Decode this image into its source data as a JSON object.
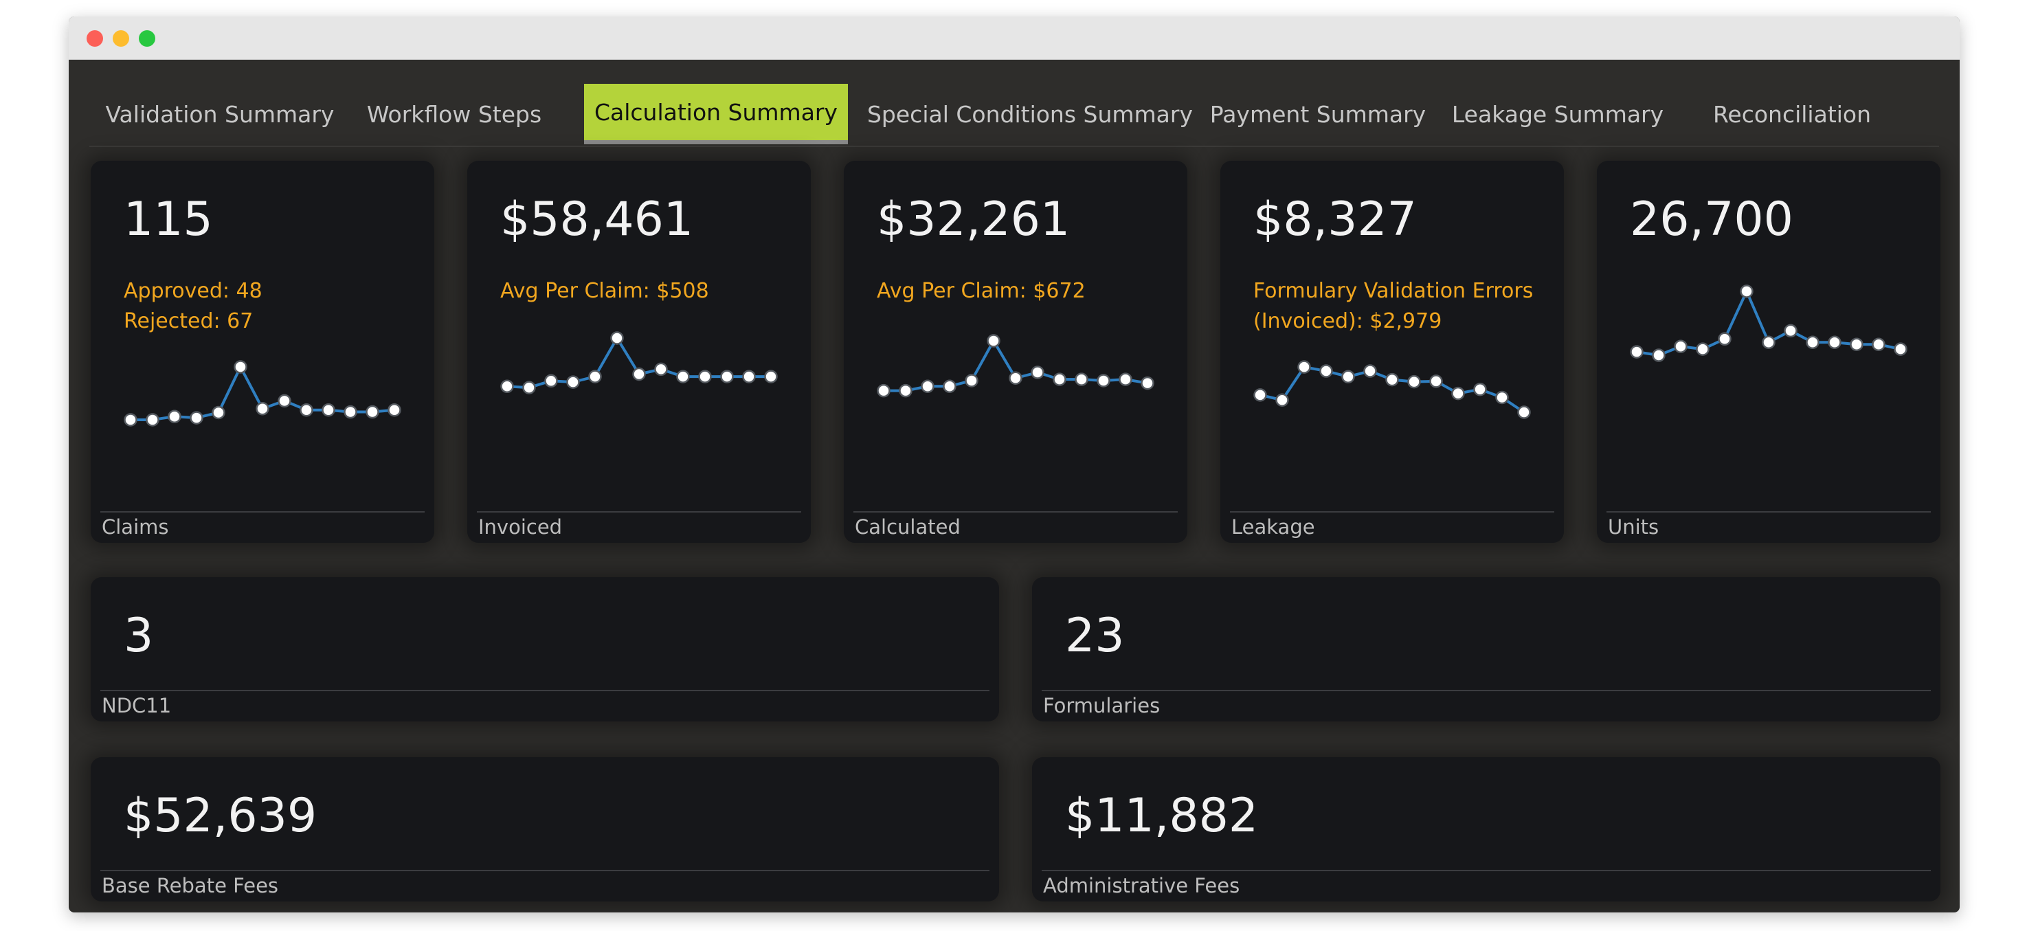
{
  "tabs": [
    {
      "label": "Validation Summary",
      "active": false
    },
    {
      "label": "Workflow Steps",
      "active": false
    },
    {
      "label": "Calculation Summary",
      "active": true
    },
    {
      "label": "Special Conditions Summary",
      "active": false
    },
    {
      "label": "Payment Summary",
      "active": false
    },
    {
      "label": "Leakage Summary",
      "active": false
    },
    {
      "label": "Reconciliation",
      "active": false
    }
  ],
  "colors": {
    "accent": "#b4d33a",
    "highlight_text": "#f2a71f",
    "spark_line": "#2f7fc1",
    "card_bg": "#16171a",
    "panel_bg": "#2e2d2b"
  },
  "cards": [
    {
      "value": "115",
      "label": "Claims",
      "sub": [
        "Approved: 48",
        "Rejected: 67"
      ],
      "spark": [
        0.19,
        0.19,
        0.24,
        0.22,
        0.3,
        1.0,
        0.36,
        0.48,
        0.34,
        0.34,
        0.31,
        0.31,
        0.34
      ]
    },
    {
      "value": "$58,461",
      "label": "Invoiced",
      "sub": [
        "Avg Per Claim: $508"
      ],
      "spark": [
        0.21,
        0.19,
        0.3,
        0.28,
        0.37,
        1.0,
        0.41,
        0.49,
        0.37,
        0.37,
        0.37,
        0.37,
        0.37
      ]
    },
    {
      "value": "$32,261",
      "label": "Calculated",
      "sub": [
        "Avg Per Claim: $672"
      ],
      "spark": [
        0.21,
        0.21,
        0.28,
        0.28,
        0.37,
        1.0,
        0.41,
        0.5,
        0.39,
        0.39,
        0.37,
        0.39,
        0.33
      ]
    },
    {
      "value": "$8,327",
      "label": "Leakage",
      "sub": [
        "Formulary Validation Errors",
        "(Invoiced): $2,979"
      ],
      "spark": [
        0.34,
        0.24,
        0.89,
        0.81,
        0.7,
        0.81,
        0.64,
        0.6,
        0.61,
        0.37,
        0.45,
        0.29,
        0.0
      ]
    },
    {
      "value": "26,700",
      "label": "Units",
      "sub": [],
      "spark": [
        0.11,
        0.06,
        0.19,
        0.15,
        0.3,
        1.0,
        0.25,
        0.42,
        0.25,
        0.25,
        0.22,
        0.22,
        0.15
      ]
    }
  ],
  "wide_cards": [
    {
      "value": "3",
      "label": "NDC11"
    },
    {
      "value": "23",
      "label": "Formularies"
    },
    {
      "value": "$52,639",
      "label": "Base Rebate Fees"
    },
    {
      "value": "$11,882",
      "label": "Administrative Fees"
    }
  ]
}
